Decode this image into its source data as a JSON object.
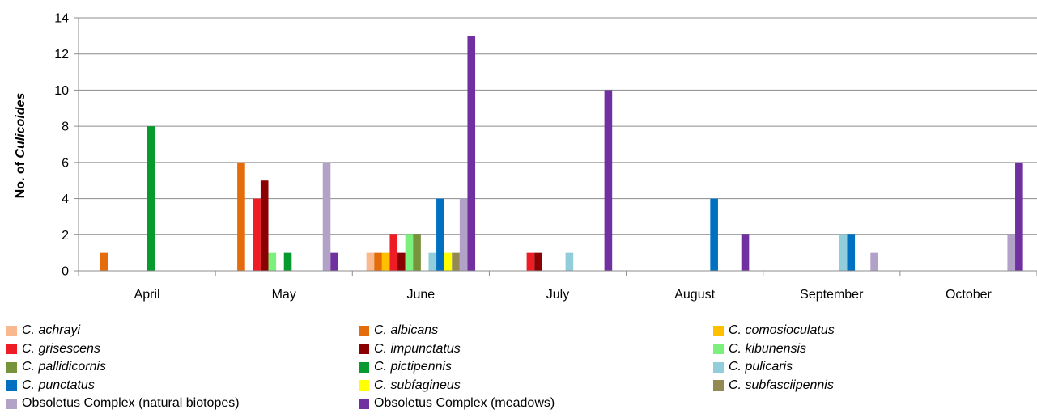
{
  "chart_data": {
    "type": "bar",
    "title": "",
    "xlabel": "",
    "ylabel": "No. of Culicoides",
    "ylim": [
      0,
      14
    ],
    "yticks": [
      0,
      2,
      4,
      6,
      8,
      10,
      12,
      14
    ],
    "grid": true,
    "legend_position": "bottom",
    "categories": [
      "April",
      "May",
      "June",
      "July",
      "August",
      "September",
      "October"
    ],
    "series": [
      {
        "name": "C. achrayi",
        "color": "#F9B98E",
        "italic": true,
        "values": [
          0,
          0,
          1,
          0,
          0,
          0,
          0
        ]
      },
      {
        "name": "C. albicans",
        "color": "#E46C0A",
        "italic": true,
        "values": [
          1,
          6,
          1,
          0,
          0,
          0,
          0
        ]
      },
      {
        "name": "C. comosioculatus",
        "color": "#FFC000",
        "italic": true,
        "values": [
          0,
          0,
          1,
          0,
          0,
          0,
          0
        ]
      },
      {
        "name": "C. grisescens",
        "color": "#EE1C25",
        "italic": true,
        "values": [
          0,
          4,
          2,
          1,
          0,
          0,
          0
        ]
      },
      {
        "name": "C. impunctatus",
        "color": "#8B0000",
        "italic": true,
        "values": [
          0,
          5,
          1,
          1,
          0,
          0,
          0
        ]
      },
      {
        "name": "C. kibunensis",
        "color": "#7CF07C",
        "italic": true,
        "values": [
          0,
          1,
          2,
          0,
          0,
          0,
          0
        ]
      },
      {
        "name": "C. pallidicornis",
        "color": "#77933C",
        "italic": true,
        "values": [
          0,
          0,
          2,
          0,
          0,
          0,
          0
        ]
      },
      {
        "name": "C. pictipennis",
        "color": "#079A2F",
        "italic": true,
        "values": [
          8,
          1,
          0,
          0,
          0,
          0,
          0
        ]
      },
      {
        "name": "C. pulicaris",
        "color": "#92CDDC",
        "italic": true,
        "values": [
          0,
          0,
          1,
          1,
          0,
          2,
          0
        ]
      },
      {
        "name": "C. punctatus",
        "color": "#0070C0",
        "italic": true,
        "values": [
          0,
          0,
          4,
          0,
          4,
          2,
          0
        ]
      },
      {
        "name": "C. subfagineus",
        "color": "#FFFF00",
        "italic": true,
        "values": [
          0,
          0,
          1,
          0,
          0,
          0,
          0
        ]
      },
      {
        "name": "C. subfasciipennis",
        "color": "#938953",
        "italic": true,
        "values": [
          0,
          0,
          1,
          0,
          0,
          0,
          0
        ]
      },
      {
        "name": "Obsoletus Complex (natural biotopes)",
        "color": "#B3A2C7",
        "italic": false,
        "values": [
          0,
          6,
          4,
          0,
          0,
          1,
          2
        ]
      },
      {
        "name": "Obsoletus Complex (meadows)",
        "color": "#7030A0",
        "italic": false,
        "values": [
          0,
          1,
          13,
          10,
          2,
          0,
          6
        ]
      }
    ]
  }
}
